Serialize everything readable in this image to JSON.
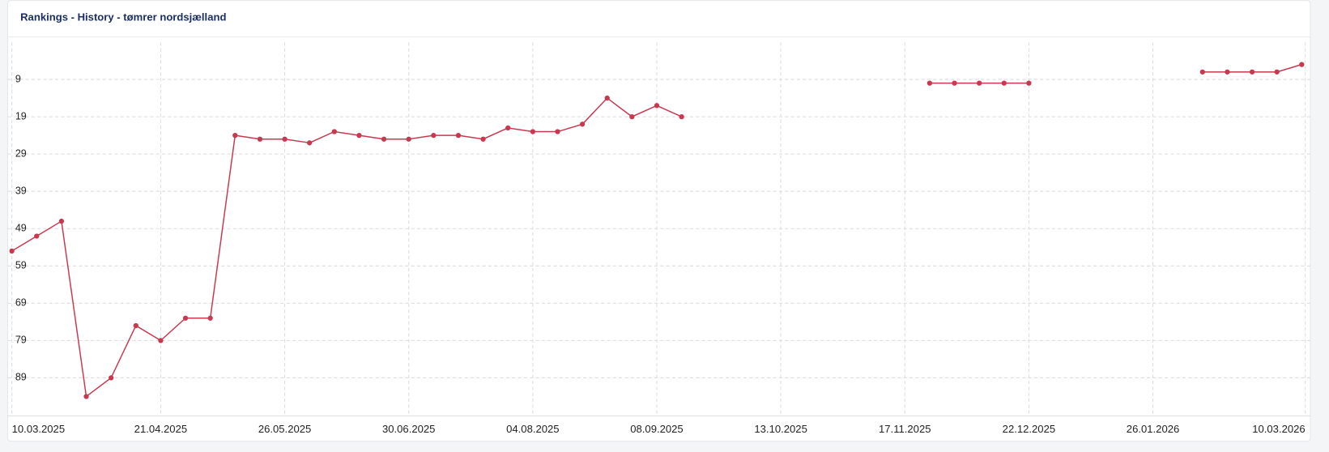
{
  "header": {
    "title": "Rankings - History - tømrer nordsjælland"
  },
  "chart_data": {
    "type": "line",
    "x": [
      "10.03.2025",
      "17.03.2025",
      "24.03.2025",
      "31.03.2025",
      "07.04.2025",
      "14.04.2025",
      "21.04.2025",
      "28.04.2025",
      "05.05.2025",
      "12.05.2025",
      "19.05.2025",
      "26.05.2025",
      "02.06.2025",
      "09.06.2025",
      "16.06.2025",
      "23.06.2025",
      "30.06.2025",
      "07.07.2025",
      "14.07.2025",
      "21.07.2025",
      "28.07.2025",
      "04.08.2025",
      "11.08.2025",
      "18.08.2025",
      "25.08.2025",
      "01.09.2025",
      "08.09.2025",
      "15.09.2025",
      "22.09.2025",
      "29.09.2025",
      "06.10.2025",
      "13.10.2025",
      "20.10.2025",
      "27.10.2025",
      "03.11.2025",
      "10.11.2025",
      "17.11.2025",
      "24.11.2025",
      "01.12.2025",
      "08.12.2025",
      "15.12.2025",
      "22.12.2025",
      "29.12.2025",
      "05.01.2026",
      "12.01.2026",
      "19.01.2026",
      "26.01.2026",
      "02.02.2026",
      "09.02.2026",
      "16.02.2026",
      "23.02.2026",
      "02.03.2026",
      "09.03.2026"
    ],
    "series": [
      {
        "color": "#c8384f",
        "values": [
          55,
          51,
          47,
          94,
          89,
          75,
          79,
          73,
          73,
          24,
          25,
          25,
          26,
          23,
          24,
          25,
          25,
          24,
          24,
          25,
          22,
          23,
          23,
          21,
          14,
          19,
          16,
          19,
          null,
          null,
          null,
          null,
          null,
          null,
          null,
          null,
          null,
          10,
          10,
          10,
          10,
          10,
          null,
          null,
          null,
          null,
          null,
          null,
          7,
          7,
          7,
          7,
          5
        ]
      }
    ],
    "xlim": [
      "10.03.2025",
      "10.03.2026"
    ],
    "xticks": [
      "10.03.2025",
      "21.04.2025",
      "26.05.2025",
      "30.06.2025",
      "04.08.2025",
      "08.09.2025",
      "13.10.2025",
      "17.11.2025",
      "22.12.2025",
      "26.01.2026",
      "10.03.2026"
    ],
    "ylim": [
      -1,
      99
    ],
    "y_inverted": true,
    "yticks": [
      9,
      19,
      29,
      39,
      49,
      59,
      69,
      79,
      89
    ],
    "grid": true
  }
}
